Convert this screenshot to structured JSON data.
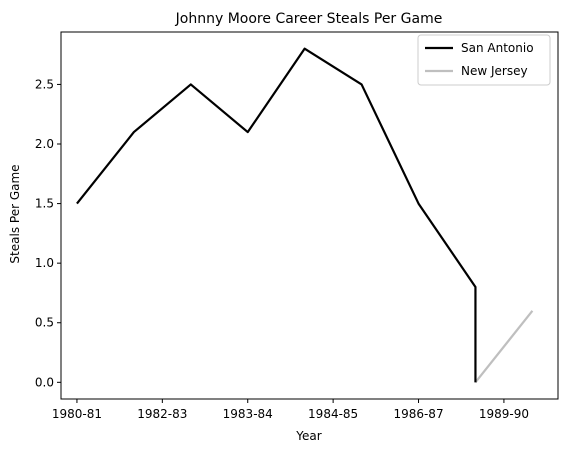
{
  "chart_data": {
    "type": "line",
    "title": "Johnny Moore  Career Steals Per Game",
    "xlabel": "Year",
    "ylabel": "Steals Per Game",
    "x_tick_labels": [
      "1980-81",
      "1982-83",
      "1983-84",
      "1984-85",
      "1986-87",
      "1989-90"
    ],
    "y_tick_labels": [
      "0.0",
      "0.5",
      "1.0",
      "1.5",
      "2.0",
      "2.5"
    ],
    "y_ticks": [
      0.0,
      0.5,
      1.0,
      1.5,
      2.0,
      2.5
    ],
    "ylim": [
      -0.14,
      2.94
    ],
    "xlim": [
      -0.28,
      8.45
    ],
    "grid": false,
    "legend_position": "top-right",
    "series": [
      {
        "name": "San Antonio",
        "color": "#000000",
        "x": [
          0,
          1,
          2,
          3,
          4,
          5,
          6,
          7,
          7
        ],
        "y": [
          1.5,
          2.1,
          2.5,
          2.1,
          2.8,
          2.5,
          1.5,
          0.8,
          0.0
        ]
      },
      {
        "name": "New Jersey",
        "color": "#bfbfbf",
        "x": [
          7,
          8
        ],
        "y": [
          0.0,
          0.6
        ]
      }
    ],
    "x_tick_positions": [
      0,
      1.5,
      3,
      4.5,
      6,
      7.5
    ]
  }
}
